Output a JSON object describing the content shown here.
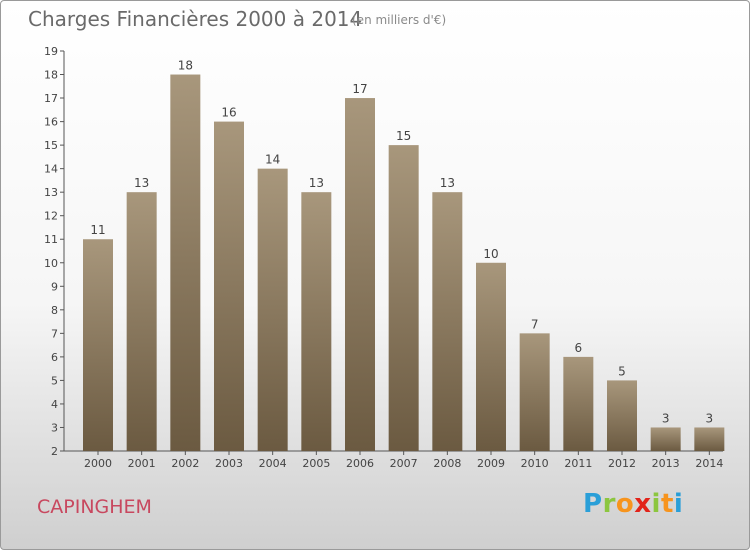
{
  "header": {
    "title": "Charges Financières 2000 à 2014",
    "unit": "(en milliers d'€)"
  },
  "commune": "CAPINGHEM",
  "logo": {
    "text": "Proxiti",
    "letters": [
      {
        "char": "P",
        "color": "#2a9fd8"
      },
      {
        "char": "r",
        "color": "#8cc63f"
      },
      {
        "char": "o",
        "color": "#f7941d"
      },
      {
        "char": "x",
        "color": "#e2231a"
      },
      {
        "char": "i",
        "color": "#8cc63f"
      },
      {
        "char": "t",
        "color": "#f7941d"
      },
      {
        "char": "i",
        "color": "#2a9fd8"
      }
    ]
  },
  "colors": {
    "bar_top": "#a8977c",
    "bar_bottom": "#6b5a41",
    "axis": "#555555",
    "grid": "#dddddd",
    "label": "#444444"
  },
  "chart_data": {
    "type": "bar",
    "title": "Charges Financières 2000 à 2014",
    "subtitle": "(en milliers d'€)",
    "categories": [
      "2000",
      "2001",
      "2002",
      "2003",
      "2004",
      "2005",
      "2006",
      "2007",
      "2008",
      "2009",
      "2010",
      "2011",
      "2012",
      "2013",
      "2014"
    ],
    "values": [
      11,
      13,
      18,
      16,
      14,
      13,
      17,
      15,
      13,
      10,
      7,
      6,
      5,
      3,
      3
    ],
    "ylim": [
      2,
      19
    ],
    "yticks": [
      2,
      3,
      4,
      5,
      6,
      7,
      8,
      9,
      10,
      11,
      12,
      13,
      14,
      15,
      16,
      17,
      18,
      19
    ],
    "grid": false,
    "legend": "none"
  }
}
